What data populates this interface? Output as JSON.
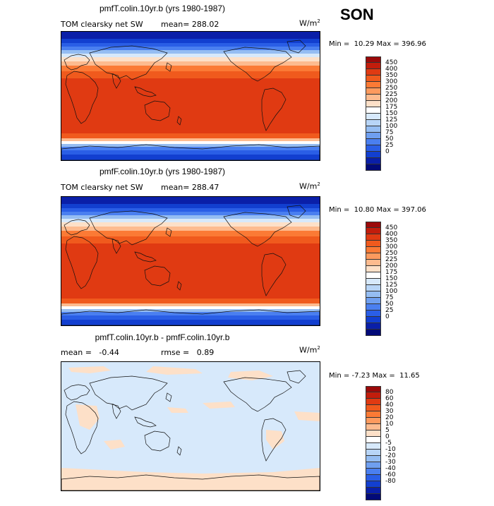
{
  "season": "SON",
  "panels": [
    {
      "title": "pmfT.colin.10yr.b (yrs 1980-1987)",
      "left_label": "TOM clearsky net SW",
      "stat_label": "mean= 288.02",
      "units_base": "W/m",
      "units_sup": "2",
      "minmax": "Min =  10.29 Max = 396.96",
      "field": "absolute",
      "colorbar": {
        "colors": [
          "#9b0a0a",
          "#c21d0c",
          "#e03a12",
          "#f05a1d",
          "#fb7a35",
          "#fd9a5e",
          "#fdbb8f",
          "#fde0c8",
          "#ffffff",
          "#d7e9fb",
          "#b8d5f7",
          "#95bdf2",
          "#6f9ff0",
          "#4a7ff0",
          "#2a5ee6",
          "#123fd0",
          "#0a1fa8",
          "#020a78"
        ],
        "ticks": [
          "450",
          "400",
          "350",
          "300",
          "250",
          "225",
          "200",
          "175",
          "150",
          "125",
          "100",
          "75",
          "50",
          "25",
          "0"
        ]
      }
    },
    {
      "title": "pmfF.colin.10yr.b (yrs 1980-1987)",
      "left_label": "TOM clearsky net SW",
      "stat_label": "mean= 288.47",
      "units_base": "W/m",
      "units_sup": "2",
      "minmax": "Min =  10.80 Max = 397.06",
      "field": "absolute",
      "colorbar": {
        "colors": [
          "#9b0a0a",
          "#c21d0c",
          "#e03a12",
          "#f05a1d",
          "#fb7a35",
          "#fd9a5e",
          "#fdbb8f",
          "#fde0c8",
          "#ffffff",
          "#d7e9fb",
          "#b8d5f7",
          "#95bdf2",
          "#6f9ff0",
          "#4a7ff0",
          "#2a5ee6",
          "#123fd0",
          "#0a1fa8",
          "#020a78"
        ],
        "ticks": [
          "450",
          "400",
          "350",
          "300",
          "250",
          "225",
          "200",
          "175",
          "150",
          "125",
          "100",
          "75",
          "50",
          "25",
          "0"
        ]
      }
    },
    {
      "title": "pmfT.colin.10yr.b - pmfF.colin.10yr.b",
      "left_label": "mean =   -0.44",
      "stat_label": "rmse =   0.89",
      "units_base": "W/m",
      "units_sup": "2",
      "minmax": "Min = -7.23 Max =  11.65",
      "field": "difference",
      "colorbar": {
        "colors": [
          "#9b0a0a",
          "#c21d0c",
          "#e03a12",
          "#f05a1d",
          "#fb7a35",
          "#fd9a5e",
          "#fdbb8f",
          "#fde0c8",
          "#ffffff",
          "#d7e9fb",
          "#b8d5f7",
          "#95bdf2",
          "#6f9ff0",
          "#4a7ff0",
          "#2a5ee6",
          "#123fd0",
          "#0a1fa8",
          "#020a78"
        ],
        "ticks": [
          "80",
          "60",
          "40",
          "30",
          "20",
          "10",
          "5",
          "0",
          "-5",
          "-10",
          "-20",
          "-30",
          "-40",
          "-60",
          "-80"
        ]
      }
    }
  ]
}
